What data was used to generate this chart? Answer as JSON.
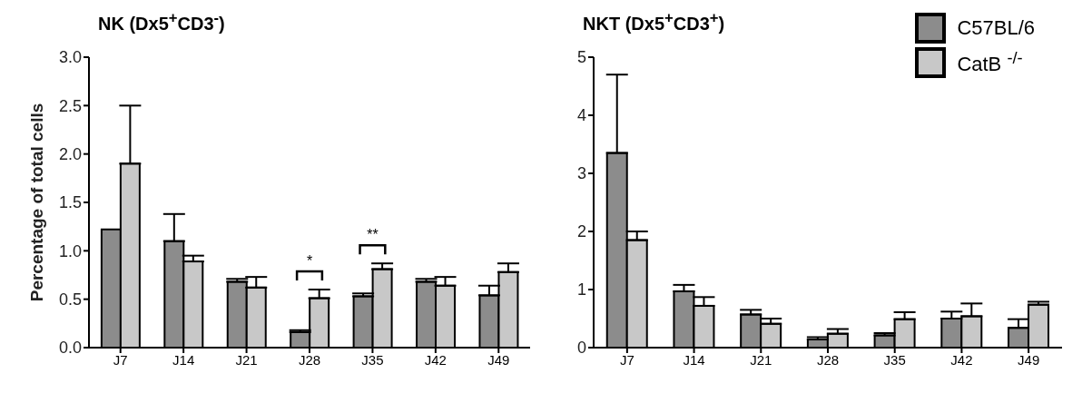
{
  "chart_data": [
    {
      "type": "bar",
      "title": "NK (Dx5$^{+}$CD3$^{-}$)",
      "ylabel": "Percentage of total cells",
      "categories": [
        "J7",
        "J14",
        "J21",
        "J28",
        "J35",
        "J42",
        "J49"
      ],
      "series": [
        {
          "color": "#8c8c8c",
          "values": [
            1.22,
            1.1,
            0.68,
            0.16,
            0.53,
            0.68,
            0.54
          ],
          "errors": [
            null,
            [
              1.1,
              1.38
            ],
            [
              0.68,
              0.71
            ],
            [
              0.16,
              0.18
            ],
            [
              0.53,
              0.56
            ],
            [
              0.68,
              0.71
            ],
            [
              0.54,
              0.64
            ]
          ]
        },
        {
          "color": "#c8c8c8",
          "values": [
            1.9,
            0.89,
            0.62,
            0.51,
            0.81,
            0.64,
            0.78
          ],
          "errors": [
            [
              1.9,
              2.5
            ],
            [
              0.89,
              0.95
            ],
            [
              0.62,
              0.73
            ],
            [
              0.51,
              0.6
            ],
            [
              0.81,
              0.87
            ],
            [
              0.64,
              0.73
            ],
            [
              0.78,
              0.87
            ]
          ]
        }
      ],
      "ylim": [
        0,
        3
      ],
      "yticks": [
        {
          "value": 0,
          "label": "0.0"
        },
        {
          "value": 0.5,
          "label": "0.5"
        },
        {
          "value": 1,
          "label": "1.0"
        },
        {
          "value": 1.5,
          "label": "1.5"
        },
        {
          "value": 2,
          "label": "2.0"
        },
        {
          "value": 2.5,
          "label": "2.5"
        },
        {
          "value": 3,
          "label": "3.0"
        }
      ],
      "annotations": [
        {
          "text": "*",
          "x": "J28",
          "y": 0.6
        },
        {
          "text": "**",
          "x": "J35",
          "y": 0.87
        }
      ],
      "legend": false
    },
    {
      "type": "bar",
      "title": "NKT (Dx5$^{+}$CD3$^{+}$)",
      "categories": [
        "J7",
        "J14",
        "J21",
        "J28",
        "J35",
        "J42",
        "J49"
      ],
      "series": [
        {
          "name": "C57BL/6",
          "color": "#8c8c8c",
          "values": [
            3.35,
            0.97,
            0.57,
            0.14,
            0.21,
            0.5,
            0.34
          ],
          "errors": [
            [
              3.35,
              4.7
            ],
            [
              0.97,
              1.08
            ],
            [
              0.57,
              0.65
            ],
            [
              0.14,
              0.18
            ],
            [
              0.21,
              0.25
            ],
            [
              0.5,
              0.62
            ],
            [
              0.34,
              0.49
            ]
          ]
        },
        {
          "name": "CatB $^{-/-}$",
          "color": "#c8c8c8",
          "values": [
            1.85,
            0.72,
            0.41,
            0.24,
            0.49,
            0.54,
            0.74
          ],
          "errors": [
            [
              1.85,
              2.0
            ],
            [
              0.72,
              0.87
            ],
            [
              0.41,
              0.5
            ],
            [
              0.24,
              0.32
            ],
            [
              0.49,
              0.61
            ],
            [
              0.54,
              0.76
            ],
            [
              0.74,
              0.79
            ]
          ]
        }
      ],
      "ylim": [
        0,
        5
      ],
      "yticks": [
        0,
        1,
        2,
        3,
        4,
        5
      ],
      "legend": "top right"
    }
  ]
}
